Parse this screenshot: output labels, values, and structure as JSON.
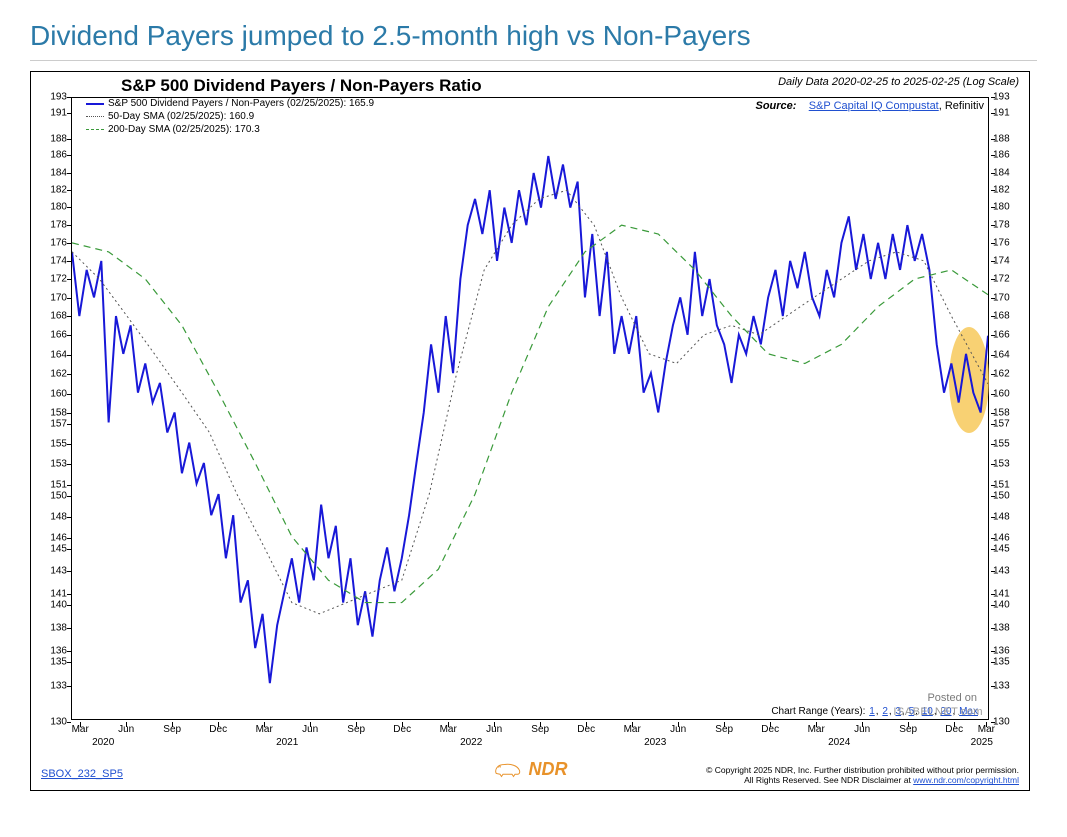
{
  "page_title": "Dividend Payers jumped to 2.5-month high vs Non-Payers",
  "chart": {
    "type": "line",
    "title": "S&P 500 Dividend Payers / Non-Payers Ratio",
    "subtitle": "Daily Data 2020-02-25 to 2025-02-25 (Log Scale)",
    "source_label": "Source:",
    "source_link_text": "S&P Capital IQ Compustat",
    "source_suffix": ", Refinitiv",
    "background_color": "#ffffff",
    "border_color": "#000000",
    "y_axis": {
      "scale": "log",
      "ticks": [
        130,
        133,
        135,
        136,
        138,
        140,
        141,
        143,
        145,
        146,
        148,
        150,
        151,
        153,
        155,
        157,
        158,
        160,
        162,
        164,
        166,
        168,
        170,
        172,
        174,
        176,
        178,
        180,
        182,
        184,
        186,
        188,
        191,
        193
      ],
      "min": 130,
      "max": 193,
      "label_fontsize": 10,
      "tick_mark_len": 4
    },
    "x_axis": {
      "start": "2020-02-25",
      "end": "2025-02-25",
      "months": [
        "Mar",
        "Jun",
        "Sep",
        "Dec",
        "Mar",
        "Jun",
        "Sep",
        "Dec",
        "Mar",
        "Jun",
        "Sep",
        "Dec",
        "Mar",
        "Jun",
        "Sep",
        "Dec",
        "Mar",
        "Jun",
        "Sep",
        "Dec",
        "Mar"
      ],
      "month_positions_pct": [
        1.0,
        6.0,
        11.0,
        16.0,
        21.0,
        26.0,
        31.0,
        36.0,
        41.0,
        46.0,
        51.0,
        56.0,
        61.0,
        66.0,
        71.0,
        76.0,
        81.0,
        86.0,
        91.0,
        96.0,
        99.5
      ],
      "years": [
        "2020",
        "2021",
        "2022",
        "2023",
        "2024",
        "2025"
      ],
      "year_positions_pct": [
        3.5,
        23.5,
        43.5,
        63.5,
        83.5,
        99.0
      ],
      "label_fontsize": 10
    },
    "series": [
      {
        "name": "S&P 500 Dividend Payers / Non-Payers (02/25/2025): 165.9",
        "color": "#1818d8",
        "line_width": 2.0,
        "dash": "solid",
        "points": [
          [
            0.0,
            175
          ],
          [
            0.8,
            168
          ],
          [
            1.6,
            173
          ],
          [
            2.4,
            170
          ],
          [
            3.2,
            174
          ],
          [
            4.0,
            157
          ],
          [
            4.8,
            168
          ],
          [
            5.6,
            164
          ],
          [
            6.4,
            167
          ],
          [
            7.2,
            160
          ],
          [
            8.0,
            163
          ],
          [
            8.8,
            159
          ],
          [
            9.6,
            161
          ],
          [
            10.4,
            156
          ],
          [
            11.2,
            158
          ],
          [
            12.0,
            152
          ],
          [
            12.8,
            155
          ],
          [
            13.6,
            151
          ],
          [
            14.4,
            153
          ],
          [
            15.2,
            148
          ],
          [
            16.0,
            150
          ],
          [
            16.8,
            144
          ],
          [
            17.6,
            148
          ],
          [
            18.4,
            140
          ],
          [
            19.2,
            142
          ],
          [
            20.0,
            136
          ],
          [
            20.8,
            139
          ],
          [
            21.6,
            133
          ],
          [
            22.4,
            138
          ],
          [
            23.2,
            141
          ],
          [
            24.0,
            144
          ],
          [
            24.8,
            140
          ],
          [
            25.6,
            145
          ],
          [
            26.4,
            142
          ],
          [
            27.2,
            149
          ],
          [
            28.0,
            144
          ],
          [
            28.8,
            147
          ],
          [
            29.6,
            140
          ],
          [
            30.4,
            144
          ],
          [
            31.2,
            138
          ],
          [
            32.0,
            141
          ],
          [
            32.8,
            137
          ],
          [
            33.6,
            142
          ],
          [
            34.4,
            145
          ],
          [
            35.2,
            141
          ],
          [
            36.0,
            144
          ],
          [
            36.8,
            148
          ],
          [
            37.6,
            153
          ],
          [
            38.4,
            158
          ],
          [
            39.2,
            165
          ],
          [
            40.0,
            160
          ],
          [
            40.8,
            168
          ],
          [
            41.6,
            162
          ],
          [
            42.4,
            172
          ],
          [
            43.2,
            178
          ],
          [
            44.0,
            181
          ],
          [
            44.8,
            177
          ],
          [
            45.6,
            182
          ],
          [
            46.4,
            174
          ],
          [
            47.2,
            180
          ],
          [
            48.0,
            176
          ],
          [
            48.8,
            182
          ],
          [
            49.6,
            178
          ],
          [
            50.4,
            184
          ],
          [
            51.2,
            180
          ],
          [
            52.0,
            186
          ],
          [
            52.8,
            181
          ],
          [
            53.6,
            185
          ],
          [
            54.4,
            180
          ],
          [
            55.2,
            183
          ],
          [
            56.0,
            170
          ],
          [
            56.8,
            177
          ],
          [
            57.6,
            168
          ],
          [
            58.4,
            175
          ],
          [
            59.2,
            164
          ],
          [
            60.0,
            168
          ],
          [
            60.8,
            164
          ],
          [
            61.6,
            168
          ],
          [
            62.4,
            160
          ],
          [
            63.2,
            162
          ],
          [
            64.0,
            158
          ],
          [
            64.8,
            163
          ],
          [
            65.6,
            167
          ],
          [
            66.4,
            170
          ],
          [
            67.2,
            166
          ],
          [
            68.0,
            175
          ],
          [
            68.8,
            168
          ],
          [
            69.6,
            172
          ],
          [
            70.4,
            167
          ],
          [
            71.2,
            165
          ],
          [
            72.0,
            161
          ],
          [
            72.8,
            166
          ],
          [
            73.6,
            164
          ],
          [
            74.4,
            168
          ],
          [
            75.2,
            165
          ],
          [
            76.0,
            170
          ],
          [
            76.8,
            173
          ],
          [
            77.6,
            168
          ],
          [
            78.4,
            174
          ],
          [
            79.2,
            171
          ],
          [
            80.0,
            175
          ],
          [
            80.8,
            170
          ],
          [
            81.6,
            168
          ],
          [
            82.4,
            173
          ],
          [
            83.2,
            170
          ],
          [
            84.0,
            176
          ],
          [
            84.8,
            179
          ],
          [
            85.6,
            173
          ],
          [
            86.4,
            177
          ],
          [
            87.2,
            172
          ],
          [
            88.0,
            176
          ],
          [
            88.8,
            172
          ],
          [
            89.6,
            177
          ],
          [
            90.4,
            173
          ],
          [
            91.2,
            178
          ],
          [
            92.0,
            174
          ],
          [
            92.8,
            177
          ],
          [
            93.6,
            173
          ],
          [
            94.4,
            165
          ],
          [
            95.2,
            160
          ],
          [
            96.0,
            163
          ],
          [
            96.8,
            159
          ],
          [
            97.6,
            164
          ],
          [
            98.4,
            160
          ],
          [
            99.2,
            158
          ],
          [
            100.0,
            165.9
          ]
        ],
        "last_value": 165.9
      },
      {
        "name": "50-Day SMA (02/25/2025): 160.9",
        "color": "#555555",
        "line_width": 1.0,
        "dash": "dotted",
        "points": [
          [
            0,
            175
          ],
          [
            3,
            172
          ],
          [
            6,
            168
          ],
          [
            9,
            164
          ],
          [
            12,
            160
          ],
          [
            15,
            156
          ],
          [
            18,
            150
          ],
          [
            21,
            145
          ],
          [
            24,
            140
          ],
          [
            27,
            139
          ],
          [
            30,
            140
          ],
          [
            33,
            141
          ],
          [
            36,
            142
          ],
          [
            39,
            150
          ],
          [
            42,
            162
          ],
          [
            45,
            173
          ],
          [
            48,
            178
          ],
          [
            51,
            181
          ],
          [
            54,
            182
          ],
          [
            57,
            178
          ],
          [
            60,
            170
          ],
          [
            63,
            164
          ],
          [
            66,
            163
          ],
          [
            69,
            166
          ],
          [
            72,
            167
          ],
          [
            75,
            166
          ],
          [
            78,
            168
          ],
          [
            81,
            170
          ],
          [
            84,
            172
          ],
          [
            87,
            174
          ],
          [
            90,
            175
          ],
          [
            93,
            174
          ],
          [
            96,
            168
          ],
          [
            100,
            160.9
          ]
        ],
        "last_value": 160.9
      },
      {
        "name": "200-Day SMA (02/25/2025): 170.3",
        "color": "#3a9a3a",
        "line_width": 1.2,
        "dash": "dashed",
        "points": [
          [
            0,
            176
          ],
          [
            4,
            175
          ],
          [
            8,
            172
          ],
          [
            12,
            167
          ],
          [
            16,
            160
          ],
          [
            20,
            153
          ],
          [
            24,
            146
          ],
          [
            28,
            142
          ],
          [
            32,
            140
          ],
          [
            36,
            140
          ],
          [
            40,
            143
          ],
          [
            44,
            150
          ],
          [
            48,
            160
          ],
          [
            52,
            169
          ],
          [
            56,
            175
          ],
          [
            60,
            178
          ],
          [
            64,
            177
          ],
          [
            68,
            173
          ],
          [
            72,
            168
          ],
          [
            76,
            164
          ],
          [
            80,
            163
          ],
          [
            84,
            165
          ],
          [
            88,
            169
          ],
          [
            92,
            172
          ],
          [
            96,
            173
          ],
          [
            100,
            170.3
          ]
        ],
        "last_value": 170.3
      }
    ],
    "highlight": {
      "cx_pct": 97.5,
      "cy_val": 161.5,
      "rx_pct": 2.2,
      "ry_val": 5.5,
      "fill": "#f6c244",
      "opacity": 0.75
    },
    "chart_range": {
      "label": "Chart Range (Years):",
      "options": [
        "1",
        "2",
        "3",
        "5",
        "10",
        "20",
        "Max"
      ]
    },
    "watermark": {
      "line1": "Posted on",
      "line2": "ISABELNET.com"
    }
  },
  "footer": {
    "code": "SBOX_232_SP5",
    "logo_text": "NDR",
    "copyright_line1": "© Copyright 2025 NDR, Inc. Further distribution prohibited without prior permission.",
    "copyright_line2_prefix": "All Rights Reserved. See NDR Disclaimer at ",
    "copyright_link": "www.ndr.com/copyright.html"
  },
  "colors": {
    "title": "#2b7aa8",
    "link": "#2050d0",
    "logo": "#e8922a",
    "highlight": "#f6c244"
  }
}
